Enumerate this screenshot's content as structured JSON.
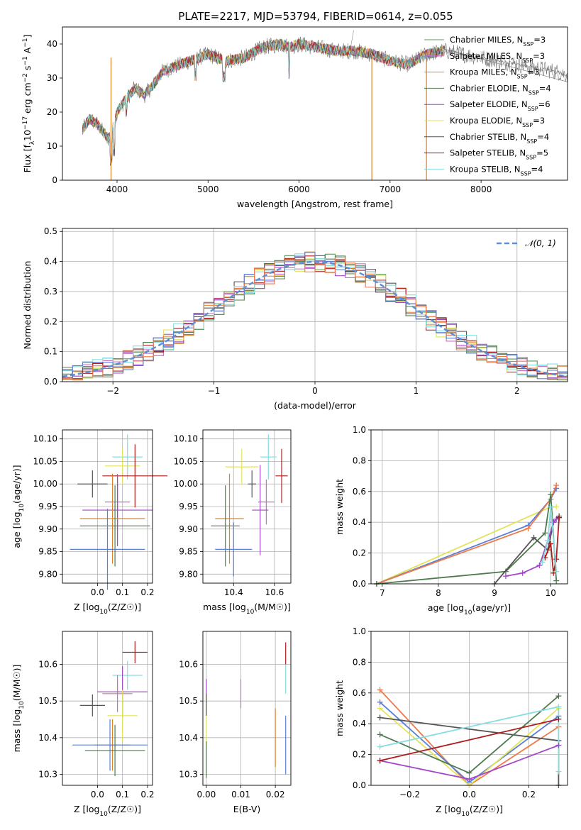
{
  "figure": {
    "title": "PLATE=2217, MJD=53794, FIBERID=0614, z=0.055",
    "colors": {
      "chabrier_miles": "#5a9a5a",
      "salpeter_miles": "#c86ec8",
      "kroupa_miles": "#d9822b",
      "chabrier_elodie": "#4e7a4e",
      "salpeter_elodie": "#a347c8",
      "kroupa_elodie": "#e3e35a",
      "chabrier_stelib": "#555555",
      "salpeter_stelib": "#b01c1c",
      "kroupa_stelib": "#86dde0",
      "blue": "#5b7fd6",
      "orange": "#ef7a4a",
      "normal": "#5b8fd6",
      "grid": "#b0b0b0"
    }
  },
  "chart_data": [
    {
      "id": "spectrum",
      "type": "line",
      "xlabel": "wavelength [Angstrom, rest frame]",
      "ylabel": "Flux [f",
      "xlim": [
        3400,
        8950
      ],
      "ylim": [
        0,
        45
      ],
      "xticks": [
        4000,
        5000,
        6000,
        7000,
        8000
      ],
      "yticks": [
        0,
        10,
        20,
        30,
        40
      ],
      "grid": false,
      "legend_position": "top-right",
      "legend": [
        {
          "name": "Chabrier MILES, N",
          "n": "3",
          "color": "chabrier_miles"
        },
        {
          "name": "Salpeter MILES, N",
          "n": "3",
          "color": "salpeter_miles"
        },
        {
          "name": "Kroupa MILES, N",
          "n": "3",
          "color": "kroupa_miles"
        },
        {
          "name": "Chabrier ELODIE, N",
          "n": "4",
          "color": "chabrier_elodie"
        },
        {
          "name": "Salpeter ELODIE, N",
          "n": "6",
          "color": "salpeter_elodie"
        },
        {
          "name": "Kroupa ELODIE, N",
          "n": "3",
          "color": "kroupa_elodie"
        },
        {
          "name": "Chabrier STELIB, N",
          "n": "4",
          "color": "chabrier_stelib"
        },
        {
          "name": "Salpeter STELIB, N",
          "n": "5",
          "color": "salpeter_stelib"
        },
        {
          "name": "Kroupa STELIB, N",
          "n": "4",
          "color": "kroupa_stelib"
        }
      ],
      "continuum": [
        [
          3600,
          14
        ],
        [
          3700,
          18
        ],
        [
          3800,
          16
        ],
        [
          3900,
          12
        ],
        [
          3950,
          15
        ],
        [
          4000,
          20
        ],
        [
          4100,
          24
        ],
        [
          4200,
          27
        ],
        [
          4300,
          25
        ],
        [
          4400,
          28
        ],
        [
          4500,
          32
        ],
        [
          4700,
          34
        ],
        [
          4900,
          36
        ],
        [
          5000,
          37
        ],
        [
          5200,
          35
        ],
        [
          5400,
          36
        ],
        [
          5600,
          39
        ],
        [
          5800,
          40
        ],
        [
          5900,
          39
        ],
        [
          6000,
          40
        ],
        [
          6200,
          39
        ],
        [
          6400,
          38
        ],
        [
          6600,
          38
        ],
        [
          6800,
          37
        ],
        [
          7000,
          35
        ],
        [
          7200,
          34
        ],
        [
          7400,
          37
        ],
        [
          7600,
          38
        ],
        [
          7800,
          37
        ],
        [
          8000,
          36
        ],
        [
          8200,
          35
        ],
        [
          8400,
          34
        ],
        [
          8600,
          33
        ],
        [
          8800,
          32
        ],
        [
          8950,
          31
        ]
      ],
      "dips": [
        [
          3934,
          5
        ],
        [
          4102,
          20
        ],
        [
          4300,
          22
        ],
        [
          4861,
          30
        ],
        [
          5175,
          24
        ],
        [
          5890,
          31
        ],
        [
          6563,
          43
        ],
        [
          6800,
          0
        ],
        [
          7400,
          0
        ]
      ]
    },
    {
      "id": "residuals",
      "type": "line",
      "xlabel": "(data-model)/error",
      "ylabel": "Normed distribution",
      "xlim": [
        -2.5,
        2.5
      ],
      "ylim": [
        0,
        0.51
      ],
      "xticks": [
        -2,
        -1,
        0,
        1,
        2
      ],
      "yticks": [
        0.0,
        0.1,
        0.2,
        0.3,
        0.4,
        0.5
      ],
      "grid": true,
      "legend_position": "top-right",
      "legend_label": "𝒩(0, 1)",
      "bins": [
        -2.5,
        -2.4,
        -2.3,
        -2.2,
        -2.1,
        -2.0,
        -1.9,
        -1.8,
        -1.7,
        -1.6,
        -1.5,
        -1.4,
        -1.3,
        -1.2,
        -1.1,
        -1.0,
        -0.9,
        -0.8,
        -0.7,
        -0.6,
        -0.5,
        -0.4,
        -0.3,
        -0.2,
        -0.1,
        0.0,
        0.1,
        0.2,
        0.3,
        0.4,
        0.5,
        0.6,
        0.7,
        0.8,
        0.9,
        1.0,
        1.1,
        1.2,
        1.3,
        1.4,
        1.5,
        1.6,
        1.7,
        1.8,
        1.9,
        2.0,
        2.1,
        2.2,
        2.3,
        2.4
      ]
    },
    {
      "id": "age-vs-z",
      "type": "scatter",
      "xlabel": "Z [log",
      "ylabel": "age  [log",
      "xlim": [
        -0.14,
        0.22
      ],
      "ylim": [
        9.78,
        10.12
      ],
      "xticks": [
        0.0,
        0.1,
        0.2
      ],
      "yticks": [
        9.8,
        9.85,
        9.9,
        9.95,
        10.0,
        10.05,
        10.1
      ],
      "grid": true,
      "points": [
        {
          "x": 0.12,
          "xerr": 0.06,
          "y": 10.06,
          "yerr": 0.05,
          "color": "kroupa_stelib"
        },
        {
          "x": 0.1,
          "xerr": 0.07,
          "y": 10.04,
          "yerr": 0.04,
          "color": "kroupa_elodie"
        },
        {
          "x": -0.02,
          "xerr": 0.06,
          "y": 10.0,
          "yerr": 0.03,
          "color": "chabrier_stelib"
        },
        {
          "x": 0.15,
          "xerr": 0.13,
          "y": 10.018,
          "yerr": 0.07,
          "color": "salpeter_stelib"
        },
        {
          "x": 0.08,
          "xerr": 0.05,
          "y": 9.96,
          "yerr": 0.05,
          "color": "salpeter_miles"
        },
        {
          "x": 0.08,
          "xerr": 0.14,
          "y": 9.942,
          "yerr": 0.08,
          "color": "salpeter_elodie"
        },
        {
          "x": 0.06,
          "xerr": 0.13,
          "y": 9.923,
          "yerr": 0.1,
          "color": "kroupa_miles"
        },
        {
          "x": 0.07,
          "xerr": 0.14,
          "y": 9.907,
          "yerr": 0.09,
          "color": "chabrier_elodie"
        },
        {
          "x": 0.04,
          "xerr": 0.15,
          "y": 9.855,
          "yerr": 0.09,
          "color": "blue"
        }
      ]
    },
    {
      "id": "age-vs-mass",
      "type": "scatter",
      "xlabel": "mass [log",
      "ylabel": "",
      "xlim": [
        10.25,
        10.68
      ],
      "ylim": [
        9.78,
        10.12
      ],
      "xticks": [
        10.4,
        10.6
      ],
      "yticks": [
        9.8,
        9.85,
        9.9,
        9.95,
        10.0,
        10.05,
        10.1
      ],
      "grid": true,
      "points": [
        {
          "x": 10.57,
          "xerr": 0.04,
          "y": 10.06,
          "yerr": 0.05,
          "color": "kroupa_stelib"
        },
        {
          "x": 10.44,
          "xerr": 0.08,
          "y": 10.038,
          "yerr": 0.04,
          "color": "kroupa_elodie"
        },
        {
          "x": 10.49,
          "xerr": 0.02,
          "y": 10.0,
          "yerr": 0.03,
          "color": "chabrier_stelib"
        },
        {
          "x": 10.635,
          "xerr": 0.03,
          "y": 10.018,
          "yerr": 0.06,
          "color": "salpeter_stelib"
        },
        {
          "x": 10.56,
          "xerr": 0.04,
          "y": 9.96,
          "yerr": 0.05,
          "color": "salpeter_miles"
        },
        {
          "x": 10.53,
          "xerr": 0.04,
          "y": 9.942,
          "yerr": 0.1,
          "color": "salpeter_elodie"
        },
        {
          "x": 10.38,
          "xerr": 0.07,
          "y": 9.923,
          "yerr": 0.1,
          "color": "kroupa_miles"
        },
        {
          "x": 10.36,
          "xerr": 0.07,
          "y": 9.907,
          "yerr": 0.09,
          "color": "chabrier_elodie"
        },
        {
          "x": 10.4,
          "xerr": 0.09,
          "y": 9.855,
          "yerr": 0.06,
          "color": "blue"
        }
      ]
    },
    {
      "id": "mass-weight-vs-age",
      "type": "line",
      "xlabel": "age  [log",
      "ylabel": "mass weight",
      "xlim": [
        6.8,
        10.3
      ],
      "ylim": [
        0,
        1.0
      ],
      "xticks": [
        7,
        8,
        9,
        10
      ],
      "yticks": [
        0.0,
        0.2,
        0.4,
        0.6,
        0.8,
        1.0
      ],
      "grid": true,
      "series": [
        {
          "color": "kroupa_elodie",
          "x": [
            6.9,
            10.0,
            10.1
          ],
          "y": [
            0.0,
            0.5,
            0.5
          ]
        },
        {
          "color": "blue",
          "x": [
            6.9,
            9.6,
            10.0,
            10.1
          ],
          "y": [
            0.0,
            0.38,
            0.55,
            0.62
          ]
        },
        {
          "color": "orange",
          "x": [
            6.9,
            9.6,
            10.0,
            10.1
          ],
          "y": [
            0.0,
            0.36,
            0.55,
            0.64
          ]
        },
        {
          "color": "chabrier_elodie",
          "x": [
            6.9,
            9.2,
            9.9,
            10.0,
            10.1
          ],
          "y": [
            0.0,
            0.08,
            0.33,
            0.58,
            0.02
          ]
        },
        {
          "color": "chabrier_stelib",
          "x": [
            9.0,
            9.7,
            9.95,
            10.05,
            10.15
          ],
          "y": [
            0.0,
            0.3,
            0.22,
            0.4,
            0.44
          ]
        },
        {
          "color": "salpeter_elodie",
          "x": [
            9.2,
            9.5,
            9.8,
            9.95,
            10.05,
            10.1
          ],
          "y": [
            0.05,
            0.07,
            0.12,
            0.28,
            0.4,
            0.42
          ]
        },
        {
          "color": "salpeter_stelib",
          "x": [
            9.9,
            10.0,
            10.05,
            10.1,
            10.15
          ],
          "y": [
            0.17,
            0.26,
            0.07,
            0.16,
            0.43
          ]
        },
        {
          "color": "kroupa_stelib",
          "x": [
            9.85,
            9.95,
            10.0,
            10.1
          ],
          "y": [
            0.14,
            0.28,
            0.5,
            0.08
          ]
        }
      ]
    },
    {
      "id": "mass-vs-z",
      "type": "scatter",
      "xlabel": "Z [log",
      "ylabel": "mass [log",
      "xlim": [
        -0.14,
        0.22
      ],
      "ylim": [
        10.27,
        10.69
      ],
      "xticks": [
        0.0,
        0.1,
        0.2
      ],
      "yticks": [
        10.3,
        10.4,
        10.5,
        10.6
      ],
      "grid": true,
      "points": [
        {
          "x": 0.15,
          "xerr": 0.05,
          "y": 10.633,
          "yerr": 0.03,
          "color": "salpeter_stelib"
        },
        {
          "x": 0.12,
          "xerr": 0.06,
          "y": 10.57,
          "yerr": 0.04,
          "color": "kroupa_stelib"
        },
        {
          "x": 0.08,
          "xerr": 0.06,
          "y": 10.52,
          "yerr": 0.05,
          "color": "salpeter_miles"
        },
        {
          "x": 0.1,
          "xerr": 0.1,
          "y": 10.525,
          "yerr": 0.07,
          "color": "salpeter_elodie"
        },
        {
          "x": 0.1,
          "xerr": 0.06,
          "y": 10.46,
          "yerr": 0.07,
          "color": "kroupa_elodie"
        },
        {
          "x": -0.02,
          "xerr": 0.05,
          "y": 10.488,
          "yerr": 0.03,
          "color": "chabrier_stelib"
        },
        {
          "x": 0.06,
          "xerr": 0.07,
          "y": 10.38,
          "yerr": 0.07,
          "color": "kroupa_miles"
        },
        {
          "x": 0.05,
          "xerr": 0.15,
          "y": 10.38,
          "yerr": 0.07,
          "color": "blue"
        },
        {
          "x": 0.07,
          "xerr": 0.12,
          "y": 10.365,
          "yerr": 0.07,
          "color": "chabrier_elodie"
        }
      ]
    },
    {
      "id": "mass-vs-ebv",
      "type": "scatter",
      "xlabel": "E(B-V)",
      "ylabel": "",
      "xlim": [
        -0.001,
        0.0245
      ],
      "ylim": [
        10.27,
        10.69
      ],
      "xticks": [
        0.0,
        0.01,
        0.02
      ],
      "yticks": [
        10.3,
        10.4,
        10.5,
        10.6
      ],
      "grid": true,
      "points": [
        {
          "x": 0.023,
          "y": 10.63,
          "yerr": 0.03,
          "color": "salpeter_stelib"
        },
        {
          "x": 0.023,
          "y": 10.56,
          "yerr": 0.04,
          "color": "kroupa_stelib"
        },
        {
          "x": 0.01,
          "y": 10.52,
          "yerr": 0.04,
          "color": "salpeter_miles"
        },
        {
          "x": 0.0,
          "y": 10.53,
          "yerr": 0.03,
          "color": "salpeter_elodie"
        },
        {
          "x": 0.0,
          "y": 10.45,
          "yerr": 0.07,
          "color": "kroupa_elodie"
        },
        {
          "x": 0.0,
          "y": 10.49,
          "yerr": 0.03,
          "color": "chabrier_stelib"
        },
        {
          "x": 0.0,
          "y": 10.34,
          "yerr": 0.05,
          "color": "chabrier_elodie"
        },
        {
          "x": 0.02,
          "y": 10.4,
          "yerr": 0.08,
          "color": "kroupa_miles"
        },
        {
          "x": 0.023,
          "y": 10.38,
          "yerr": 0.08,
          "color": "blue"
        }
      ]
    },
    {
      "id": "mass-weight-vs-z",
      "type": "line",
      "xlabel": "Z [log",
      "ylabel": "mass weight",
      "xlim": [
        -0.33,
        0.33
      ],
      "ylim": [
        0,
        1.0
      ],
      "xticks": [
        -0.2,
        0.0,
        0.2
      ],
      "yticks": [
        0.0,
        0.2,
        0.4,
        0.6,
        0.8,
        1.0
      ],
      "grid": true,
      "series": [
        {
          "color": "orange",
          "x": [
            -0.3,
            0.0,
            0.3
          ],
          "y": [
            0.62,
            0.0,
            0.38
          ]
        },
        {
          "color": "blue",
          "x": [
            -0.3,
            0.0,
            0.3
          ],
          "y": [
            0.54,
            0.02,
            0.45
          ]
        },
        {
          "color": "kroupa_elodie",
          "x": [
            -0.3,
            0.0,
            0.3
          ],
          "y": [
            0.5,
            0.0,
            0.5
          ]
        },
        {
          "color": "chabrier_stelib",
          "x": [
            -0.3,
            0.3,
            0.3
          ],
          "y": [
            0.44,
            0.29,
            0.0
          ]
        },
        {
          "color": "chabrier_elodie",
          "x": [
            -0.3,
            0.0,
            0.3
          ],
          "y": [
            0.33,
            0.08,
            0.58
          ]
        },
        {
          "color": "kroupa_stelib",
          "x": [
            -0.3,
            0.3,
            0.3
          ],
          "y": [
            0.25,
            0.51,
            0.09
          ]
        },
        {
          "color": "salpeter_elodie",
          "x": [
            -0.3,
            0.0,
            0.3
          ],
          "y": [
            0.16,
            0.04,
            0.26
          ]
        },
        {
          "color": "salpeter_stelib",
          "x": [
            -0.3,
            0.3
          ],
          "y": [
            0.16,
            0.43
          ]
        }
      ]
    }
  ]
}
